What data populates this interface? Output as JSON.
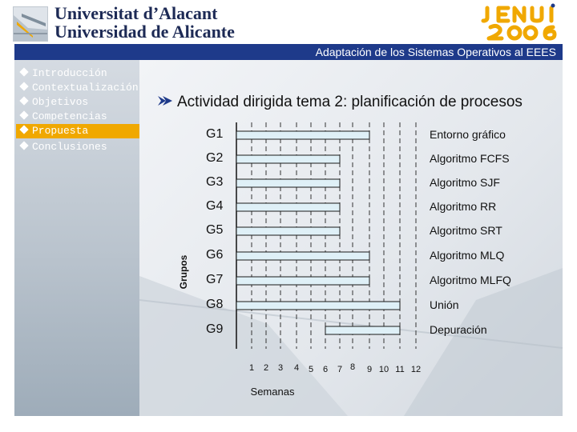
{
  "header": {
    "university_line1": "Universitat d’Alacant",
    "university_line2": "Universidad de Alicante",
    "event_logo": "JENUI 2006",
    "title": "Adaptación de los Sistemas Operativos al EEES"
  },
  "sidebar": {
    "items": [
      {
        "label": "Introducción",
        "active": false
      },
      {
        "label": "Contextualización",
        "active": false
      },
      {
        "label": "Objetivos",
        "active": false
      },
      {
        "label": "Competencias",
        "active": false
      },
      {
        "label": "Propuesta",
        "active": true
      },
      {
        "label": "Conclusiones",
        "active": false
      }
    ],
    "bullet_icon": "diamond-bullet-icon",
    "active_color": "#f0a800"
  },
  "main": {
    "heading": "Actividad dirigida tema 2: planificación de procesos",
    "heading_icon": "arrow-icon"
  },
  "chart_data": {
    "type": "bar",
    "orientation": "horizontal",
    "ylabel": "Grupos",
    "xlabel": "Semanas",
    "x_ticks": [
      "1",
      "2",
      "3",
      "4",
      "5",
      "6",
      "7",
      "8",
      "9",
      "10",
      "11",
      "12"
    ],
    "groups": [
      {
        "label": "G1",
        "activity": "Entorno gráfico",
        "start": 1,
        "end": 9
      },
      {
        "label": "G2",
        "activity": "Algoritmo FCFS",
        "start": 1,
        "end": 7
      },
      {
        "label": "G3",
        "activity": "Algoritmo SJF",
        "start": 1,
        "end": 7
      },
      {
        "label": "G4",
        "activity": "Algoritmo RR",
        "start": 1,
        "end": 7
      },
      {
        "label": "G5",
        "activity": "Algoritmo SRT",
        "start": 1,
        "end": 7
      },
      {
        "label": "G6",
        "activity": "Algoritmo MLQ",
        "start": 1,
        "end": 9
      },
      {
        "label": "G7",
        "activity": "Algoritmo MLFQ",
        "start": 1,
        "end": 9
      },
      {
        "label": "G8",
        "activity": "Unión",
        "start": 1,
        "end": 11
      },
      {
        "label": "G9",
        "activity": "Depuración",
        "start": 6,
        "end": 11
      }
    ],
    "grid": "dashed-vertical",
    "bar_color": "#dff0f7"
  }
}
